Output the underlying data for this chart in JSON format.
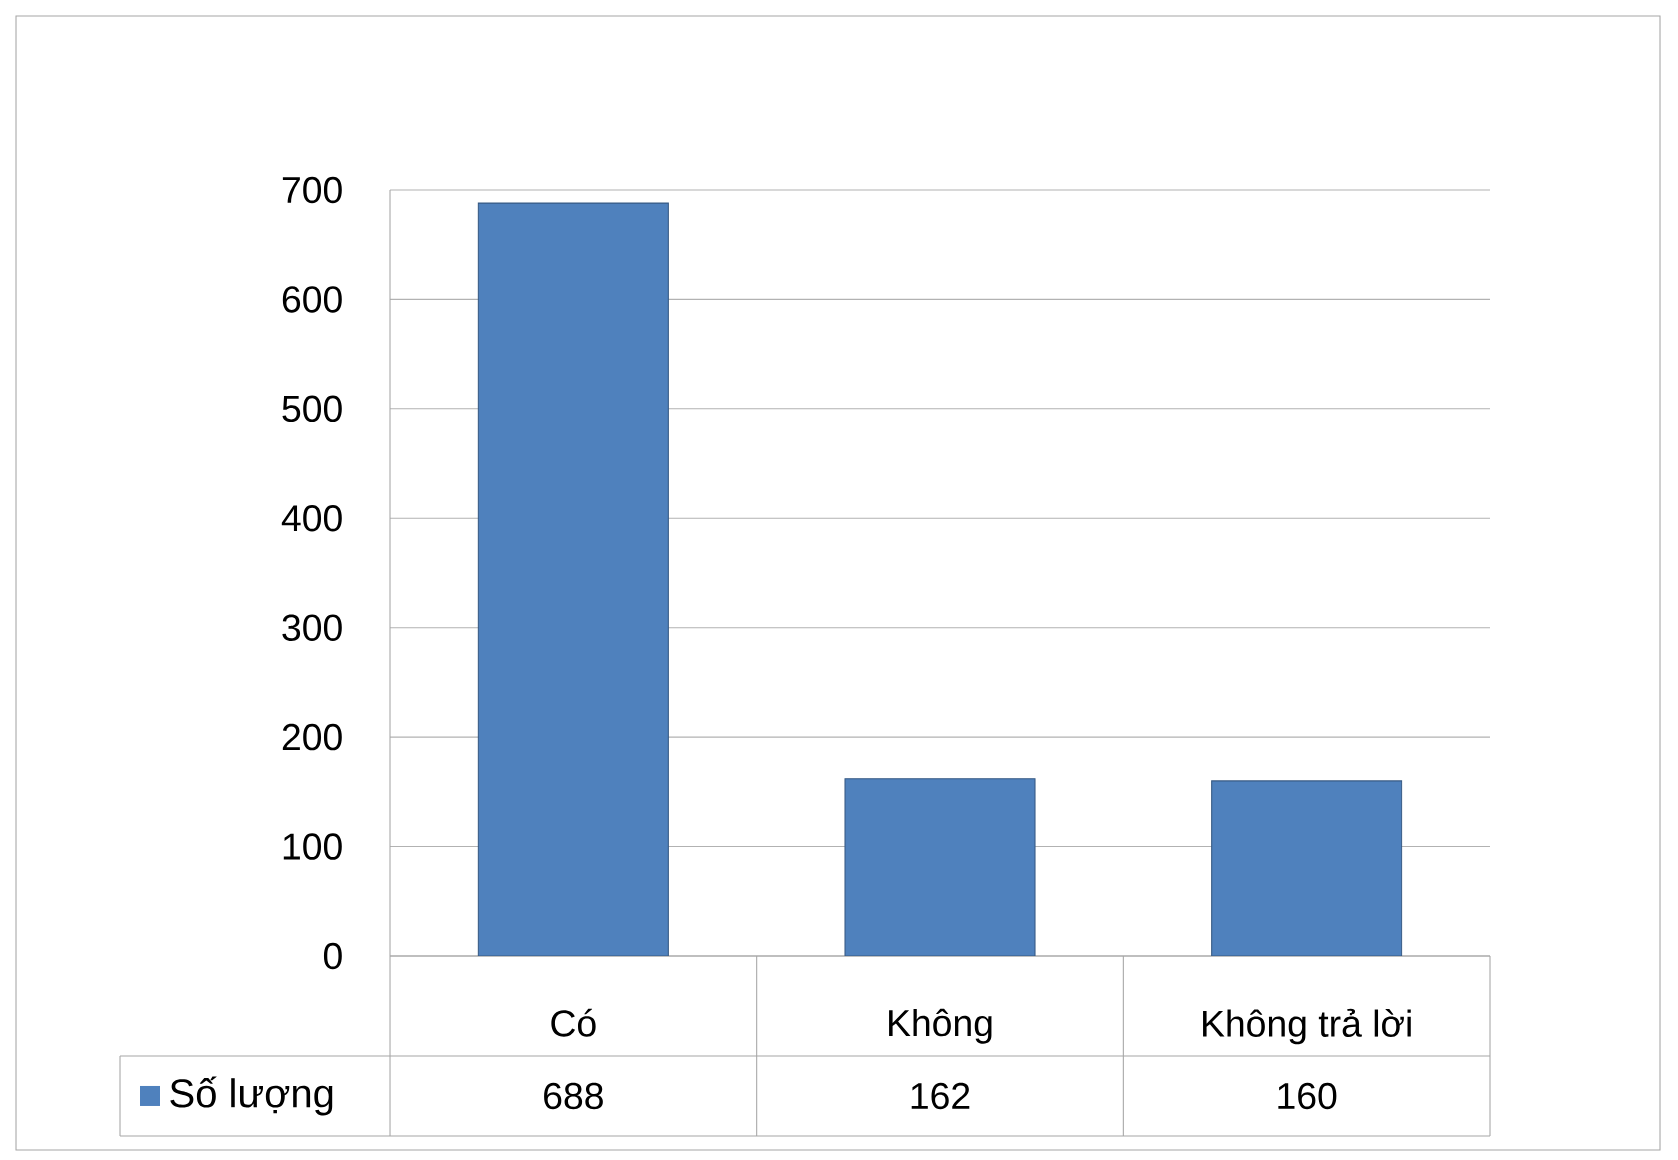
{
  "chart_data": {
    "type": "bar",
    "categories": [
      "Có",
      "Không",
      "Không trả lời"
    ],
    "series": [
      {
        "name": "Số lượng",
        "color": "#4f81bd",
        "values": [
          688,
          162,
          160
        ]
      }
    ],
    "ylim": [
      0,
      700
    ],
    "yticks": [
      0,
      100,
      200,
      300,
      400,
      500,
      600,
      700
    ],
    "grid": "y",
    "legend": "bottom left",
    "data_labels": true
  }
}
